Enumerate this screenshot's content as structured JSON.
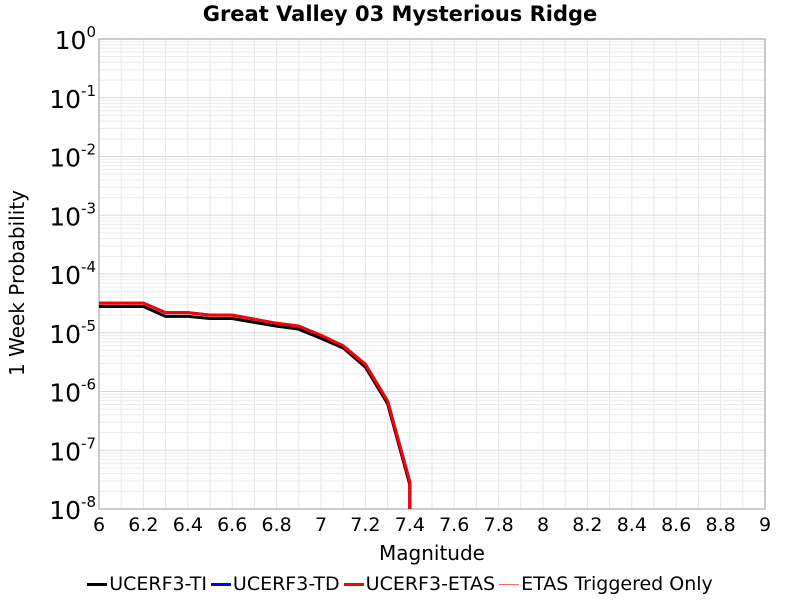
{
  "chart_data": {
    "type": "line",
    "title": "Great Valley 03 Mysterious Ridge",
    "xlabel": "Magnitude",
    "ylabel": "1 Week Probability",
    "xlim": [
      6,
      9
    ],
    "ylim": [
      1e-08,
      1
    ],
    "yscale": "log",
    "grid": true,
    "legend_position": "bottom",
    "x_ticks": [
      "6",
      "6.2",
      "6.4",
      "6.6",
      "6.8",
      "7",
      "7.2",
      "7.4",
      "7.6",
      "7.8",
      "8",
      "8.2",
      "8.4",
      "8.6",
      "8.8",
      "9"
    ],
    "y_ticks": [
      {
        "base": "10",
        "exp": "0"
      },
      {
        "base": "10",
        "exp": "-1"
      },
      {
        "base": "10",
        "exp": "-2"
      },
      {
        "base": "10",
        "exp": "-3"
      },
      {
        "base": "10",
        "exp": "-4"
      },
      {
        "base": "10",
        "exp": "-5"
      },
      {
        "base": "10",
        "exp": "-6"
      },
      {
        "base": "10",
        "exp": "-7"
      },
      {
        "base": "10",
        "exp": "-8"
      }
    ],
    "series": [
      {
        "name": "UCERF3-TI",
        "color": "#000000",
        "width": 3,
        "x": [
          6.0,
          6.1,
          6.2,
          6.3,
          6.4,
          6.5,
          6.6,
          6.7,
          6.8,
          6.9,
          7.0,
          7.1,
          7.2,
          7.3,
          7.4,
          7.4
        ],
        "y": [
          2.8e-05,
          2.8e-05,
          2.8e-05,
          1.9e-05,
          1.9e-05,
          1.75e-05,
          1.75e-05,
          1.5e-05,
          1.3e-05,
          1.15e-05,
          8e-06,
          5.5e-06,
          2.6e-06,
          6.2e-07,
          2.6e-08,
          1e-08
        ]
      },
      {
        "name": "UCERF3-TD",
        "color": "#0000ff",
        "width": 3,
        "x": [
          6.0,
          6.1,
          6.2,
          6.3,
          6.4,
          6.5,
          6.6,
          6.7,
          6.8,
          6.9,
          7.0,
          7.1,
          7.2,
          7.3,
          7.4,
          7.4
        ],
        "y": [
          3.2e-05,
          3.2e-05,
          3.2e-05,
          2.2e-05,
          2.2e-05,
          2e-05,
          2e-05,
          1.7e-05,
          1.45e-05,
          1.3e-05,
          9e-06,
          6e-06,
          2.9e-06,
          6.9e-07,
          2.9e-08,
          1e-08
        ]
      },
      {
        "name": "UCERF3-ETAS",
        "color": "#ff0000",
        "width": 3,
        "x": [
          6.0,
          6.1,
          6.2,
          6.3,
          6.4,
          6.5,
          6.6,
          6.7,
          6.8,
          6.9,
          7.0,
          7.1,
          7.2,
          7.3,
          7.4,
          7.4
        ],
        "y": [
          3.2e-05,
          3.2e-05,
          3.2e-05,
          2.2e-05,
          2.2e-05,
          2e-05,
          2e-05,
          1.7e-05,
          1.45e-05,
          1.3e-05,
          9e-06,
          6e-06,
          2.9e-06,
          6.9e-07,
          2.9e-08,
          1e-08
        ]
      },
      {
        "name": "ETAS Triggered Only",
        "color": "#ff6666",
        "width": 1,
        "x": [],
        "y": []
      }
    ]
  }
}
